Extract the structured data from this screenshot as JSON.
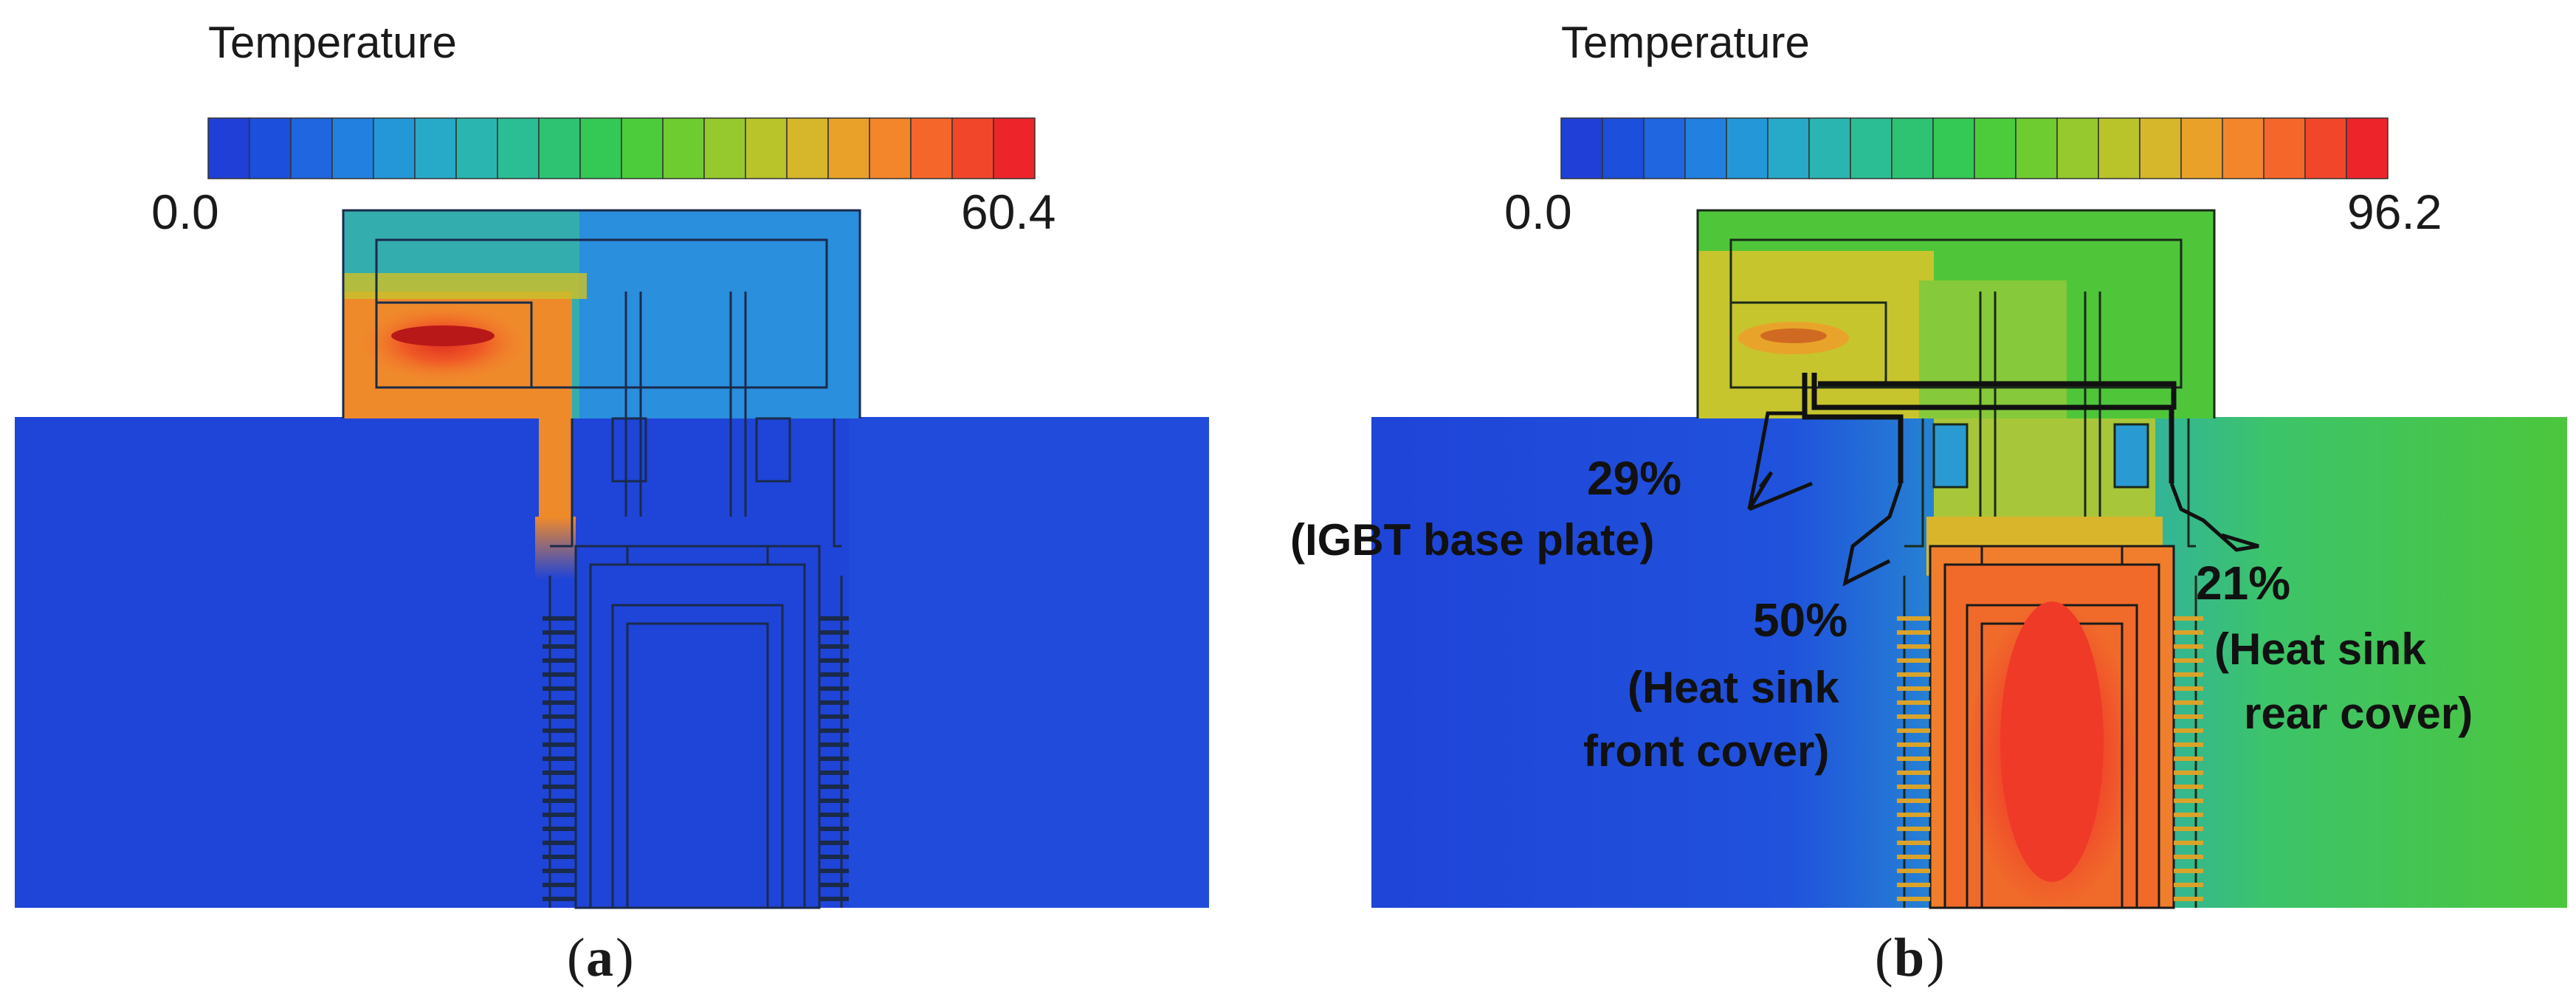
{
  "panels": [
    {
      "id": "a",
      "colorbar": {
        "title": "Temperature",
        "min_label": "0.0",
        "max_label": "60.4",
        "bands": 20
      },
      "label_open": "(",
      "label_letter": "a",
      "label_close": ")"
    },
    {
      "id": "b",
      "colorbar": {
        "title": "Temperature",
        "min_label": "0.0",
        "max_label": "96.2",
        "bands": 20
      },
      "label_open": "(",
      "label_letter": "b",
      "label_close": ")",
      "annotations": {
        "igbt_pct": "29%",
        "igbt_desc": "(IGBT base plate)",
        "front_pct": "50%",
        "front_line1": "(Heat sink",
        "front_line2": "front cover)",
        "rear_pct": "21%",
        "rear_line1": "(Heat sink",
        "rear_line2": "rear cover)"
      }
    }
  ],
  "colormap": [
    "#1f3fd6",
    "#1c4fdc",
    "#1f66e0",
    "#2281e0",
    "#2497d8",
    "#27a9c8",
    "#2ab5b0",
    "#2bbd93",
    "#2dc373",
    "#34c855",
    "#4ccc3b",
    "#6ecb30",
    "#95c92d",
    "#b9c42b",
    "#d6b62b",
    "#eaa12a",
    "#f3852a",
    "#f5662a",
    "#f2462b",
    "#ee242b"
  ]
}
